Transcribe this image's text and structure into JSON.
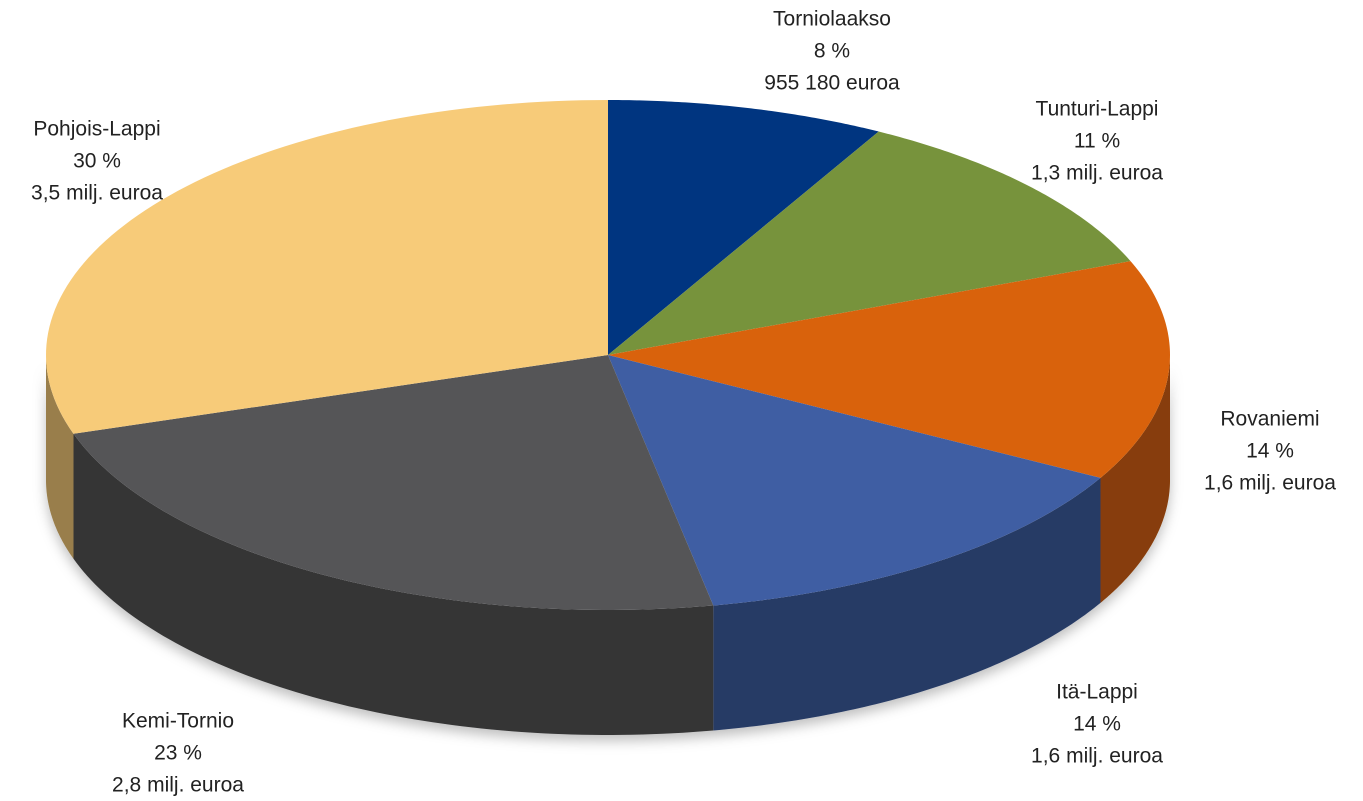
{
  "chart_data": {
    "type": "pie",
    "categories": [
      "Torniolaakso",
      "Tunturi-Lappi",
      "Rovaniemi",
      "Itä-Lappi",
      "Kemi-Tornio",
      "Pohjois-Lappi"
    ],
    "values": [
      8,
      11,
      14,
      14,
      23,
      30
    ],
    "value_labels": [
      "8 %",
      "11 %",
      "14 %",
      "14 %",
      "23 %",
      "30 %"
    ],
    "amount_labels": [
      "955 180 euroa",
      "1,3 milj. euroa",
      "1,6 milj. euroa",
      "1,6 milj. euroa",
      "2,8 milj. euroa",
      "3,5 milj. euroa"
    ],
    "colors": [
      "#003580",
      "#77933c",
      "#d9620c",
      "#3f5ea3",
      "#555557",
      "#f7cb79"
    ]
  }
}
